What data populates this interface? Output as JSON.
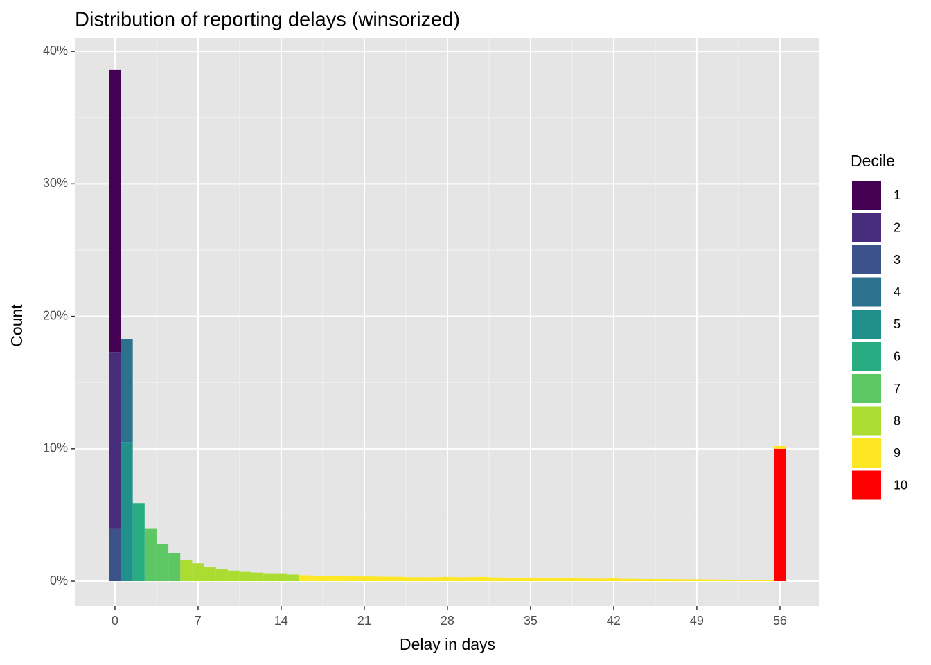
{
  "chart_data": {
    "type": "histogram",
    "title": "Distribution of reporting delays (winsorized)",
    "x_label": "Delay in days",
    "y_label": "Count",
    "legend_title": "Decile",
    "legend_position": "right",
    "grid": true,
    "xlim": [
      -3.38,
      59.33
    ],
    "ylim": [
      -1.88,
      41.0
    ],
    "xticks": [
      0,
      7,
      14,
      21,
      28,
      35,
      42,
      49,
      56
    ],
    "xminor": [
      3.5,
      10.5,
      17.5,
      24.5,
      31.5,
      38.5,
      45.5,
      52.5
    ],
    "yticks": [
      {
        "value": 0,
        "label": "0%"
      },
      {
        "value": 10,
        "label": "10%"
      },
      {
        "value": 20,
        "label": "20%"
      },
      {
        "value": 30,
        "label": "30%"
      },
      {
        "value": 40,
        "label": "40%"
      }
    ],
    "yminor": [
      5,
      15,
      25,
      35
    ],
    "bin_width": 1,
    "series": [
      {
        "name": "1",
        "color": "#440154",
        "x": [
          0
        ],
        "values": [
          21.3
        ]
      },
      {
        "name": "2",
        "color": "#472D7B",
        "x": [
          0
        ],
        "values": [
          13.3
        ]
      },
      {
        "name": "3",
        "color": "#3B528B",
        "x": [
          0
        ],
        "values": [
          4.0
        ]
      },
      {
        "name": "4",
        "color": "#2C728E",
        "x": [
          1
        ],
        "values": [
          7.8
        ]
      },
      {
        "name": "5",
        "color": "#21908C",
        "x": [
          1
        ],
        "values": [
          10.5
        ]
      },
      {
        "name": "6",
        "color": "#27AD81",
        "x": [
          2
        ],
        "values": [
          5.9
        ]
      },
      {
        "name": "7",
        "color": "#5DC863",
        "x": [
          3,
          4,
          5
        ],
        "values": [
          4.0,
          2.8,
          2.1
        ]
      },
      {
        "name": "8",
        "color": "#AADC32",
        "x": [
          6,
          7,
          8,
          9,
          10,
          11,
          12,
          13,
          14,
          15
        ],
        "values": [
          1.6,
          1.35,
          1.05,
          0.9,
          0.8,
          0.7,
          0.65,
          0.6,
          0.6,
          0.5
        ]
      },
      {
        "name": "9",
        "color": "#FDE725",
        "x": [
          16,
          17,
          18,
          19,
          20,
          21,
          22,
          23,
          24,
          25,
          26,
          27,
          28,
          29,
          30,
          31,
          32,
          33,
          34,
          35,
          36,
          37,
          38,
          39,
          40,
          41,
          42,
          43,
          44,
          45,
          46,
          47,
          48,
          49,
          50,
          51,
          52,
          53,
          54,
          55,
          56
        ],
        "values": [
          0.45,
          0.42,
          0.4,
          0.38,
          0.37,
          0.36,
          0.35,
          0.34,
          0.33,
          0.3,
          0.3,
          0.3,
          0.32,
          0.3,
          0.31,
          0.32,
          0.28,
          0.27,
          0.26,
          0.27,
          0.25,
          0.24,
          0.23,
          0.22,
          0.2,
          0.19,
          0.21,
          0.18,
          0.17,
          0.16,
          0.16,
          0.15,
          0.14,
          0.14,
          0.13,
          0.12,
          0.1,
          0.09,
          0.08,
          0.08,
          0.2
        ]
      },
      {
        "name": "10",
        "color": "#FF0000",
        "x": [
          56
        ],
        "values": [
          10.0
        ]
      }
    ]
  }
}
